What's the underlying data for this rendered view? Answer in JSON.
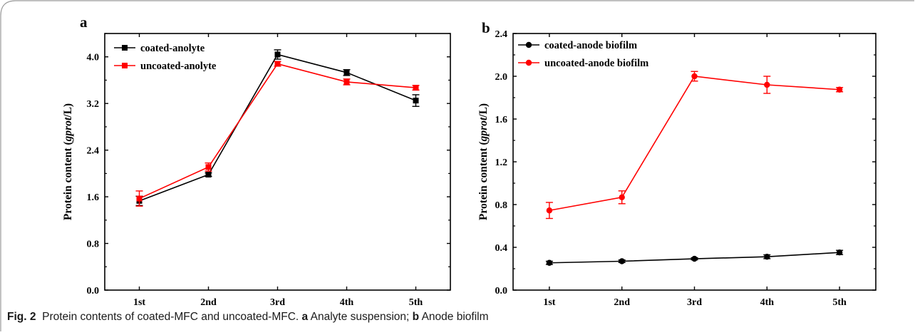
{
  "caption": {
    "fig_label": "Fig. 2",
    "text": "Protein contents of coated-MFC and uncoated-MFC.",
    "panel_a_letter": "a",
    "panel_a_text": "Analyte suspension;",
    "panel_b_letter": "b",
    "panel_b_text": "Anode biofilm"
  },
  "colors": {
    "series1": "#000000",
    "series2": "#ff0000",
    "frame": "#9a9a9a"
  },
  "chart_data": [
    {
      "type": "line",
      "panel_label": "a",
      "categories": [
        "1st",
        "2nd",
        "3rd",
        "4th",
        "5th"
      ],
      "ylabel_prefix": "Protein content (",
      "ylabel_italic": "gprot",
      "ylabel_suffix": "/L)",
      "ylim": [
        0,
        4.4
      ],
      "yticks": [
        "0.0",
        "0.8",
        "1.6",
        "2.4",
        "3.2",
        "4.0"
      ],
      "yticks_values": [
        0,
        0.8,
        1.6,
        2.4,
        3.2,
        4.0
      ],
      "legend_position": "top-left",
      "series": [
        {
          "name": "coated-anolyte",
          "color": "#000000",
          "marker": "square",
          "values": [
            1.53,
            1.98,
            4.04,
            3.73,
            3.25
          ],
          "errors": [
            0.08,
            0.03,
            0.08,
            0.05,
            0.1
          ]
        },
        {
          "name": "uncoated-anolyte",
          "color": "#ff0000",
          "marker": "square",
          "values": [
            1.57,
            2.11,
            3.88,
            3.57,
            3.47
          ],
          "errors": [
            0.13,
            0.07,
            0.04,
            0.05,
            0.04
          ]
        }
      ]
    },
    {
      "type": "line",
      "panel_label": "b",
      "categories": [
        "1st",
        "2nd",
        "3rd",
        "4th",
        "5th"
      ],
      "ylabel_prefix": "Protein content (",
      "ylabel_italic": "gprot",
      "ylabel_suffix": "/L)",
      "ylim": [
        0,
        2.4
      ],
      "yticks": [
        "0.0",
        "0.4",
        "0.8",
        "1.2",
        "1.6",
        "2.0",
        "2.4"
      ],
      "yticks_values": [
        0,
        0.4,
        0.8,
        1.2,
        1.6,
        2.0,
        2.4
      ],
      "legend_position": "top-left",
      "series": [
        {
          "name": "coated-anode biofilm",
          "color": "#000000",
          "marker": "circle",
          "values": [
            0.255,
            0.27,
            0.293,
            0.312,
            0.352
          ],
          "errors": [
            0.015,
            0.012,
            0.01,
            0.018,
            0.02
          ]
        },
        {
          "name": "uncoated-anode biofilm",
          "color": "#ff0000",
          "marker": "circle",
          "values": [
            0.745,
            0.868,
            2.0,
            1.92,
            1.875
          ],
          "errors": [
            0.075,
            0.06,
            0.045,
            0.08,
            0.02
          ]
        }
      ]
    }
  ]
}
